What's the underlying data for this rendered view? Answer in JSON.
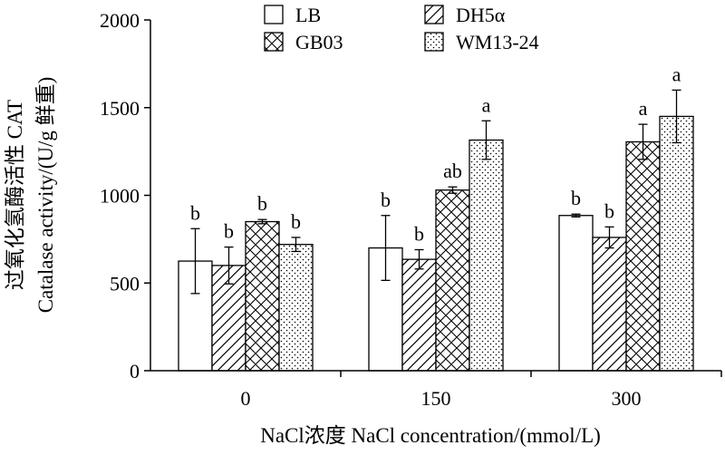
{
  "chart_data": {
    "type": "bar",
    "xlabel": "NaCl浓度 NaCl concentration/(mmol/L)",
    "ylabel_zh": "过氧化氢酶活性 CAT",
    "ylabel_en": "Catalase activity/(U/g 鲜重)",
    "ylim": [
      0,
      2000
    ],
    "yticks": [
      0,
      500,
      1000,
      1500,
      2000
    ],
    "categories": [
      "0",
      "150",
      "300"
    ],
    "legend_position": "top",
    "grid": false,
    "series": [
      {
        "name": "LB",
        "pattern": "white",
        "values": [
          625,
          700,
          885
        ],
        "errors": [
          185,
          185,
          8
        ],
        "labels": [
          "b",
          "b",
          "b"
        ]
      },
      {
        "name": "DH5α",
        "pattern": "diagonal",
        "values": [
          600,
          635,
          760
        ],
        "errors": [
          105,
          55,
          60
        ],
        "labels": [
          "b",
          "b",
          "b"
        ]
      },
      {
        "name": "GB03",
        "pattern": "crosshatch",
        "values": [
          850,
          1030,
          1305
        ],
        "errors": [
          12,
          18,
          100
        ],
        "labels": [
          "b",
          "ab",
          "a"
        ]
      },
      {
        "name": "WM13-24",
        "pattern": "dotted",
        "values": [
          720,
          1315,
          1450
        ],
        "errors": [
          40,
          110,
          150
        ],
        "labels": [
          "b",
          "a",
          "a"
        ]
      }
    ]
  }
}
